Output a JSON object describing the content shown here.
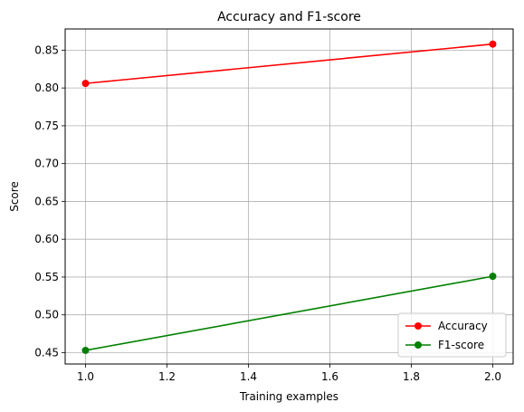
{
  "chart_data": {
    "type": "line",
    "title": "Accuracy and F1-score",
    "xlabel": "Training examples",
    "ylabel": "Score",
    "xlim": [
      0.95,
      2.05
    ],
    "ylim": [
      0.435,
      0.878
    ],
    "xticks": [
      1.0,
      1.2,
      1.4,
      1.6,
      1.8,
      2.0
    ],
    "xtick_labels": [
      "1.0",
      "1.2",
      "1.4",
      "1.6",
      "1.8",
      "2.0"
    ],
    "yticks": [
      0.45,
      0.5,
      0.55,
      0.6,
      0.65,
      0.7,
      0.75,
      0.8,
      0.85
    ],
    "ytick_labels": [
      "0.45",
      "0.50",
      "0.55",
      "0.60",
      "0.65",
      "0.70",
      "0.75",
      "0.80",
      "0.85"
    ],
    "grid": true,
    "legend_position": "lower-right",
    "x": [
      1.0,
      2.0
    ],
    "series": [
      {
        "name": "Accuracy",
        "color": "#ff0000",
        "values": [
          0.806,
          0.858
        ]
      },
      {
        "name": "F1-score",
        "color": "#008000",
        "values": [
          0.453,
          0.551
        ]
      }
    ]
  }
}
